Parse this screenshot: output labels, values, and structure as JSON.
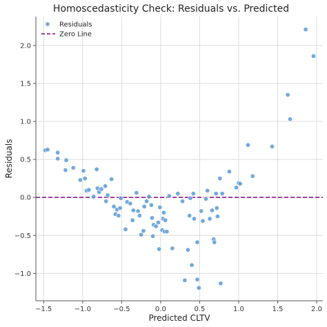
{
  "chart_data": {
    "type": "scatter",
    "title": "Homoscedasticity Check: Residuals vs. Predicted",
    "xlabel": "Predicted CLTV",
    "ylabel": "Residuals",
    "xlim": [
      -1.6,
      2.08
    ],
    "ylim": [
      -1.36,
      2.38
    ],
    "xticks": [
      -1.5,
      -1.0,
      -0.5,
      0.0,
      0.5,
      1.0,
      1.5,
      2.0
    ],
    "xtick_labels": [
      "−1.5",
      "−1.0",
      "−0.5",
      "0.0",
      "0.5",
      "1.0",
      "1.5",
      "2.0"
    ],
    "yticks": [
      -1.0,
      -0.5,
      0.0,
      0.5,
      1.0,
      1.5,
      2.0
    ],
    "ytick_labels": [
      "−1.0",
      "−0.5",
      "0.0",
      "0.5",
      "1.0",
      "1.5",
      "2.0"
    ],
    "grid": true,
    "legend_position": "top-left",
    "reference_line": {
      "y": 0.0,
      "name": "Zero Line",
      "color": "#8b008b",
      "style": "dashed"
    },
    "series": [
      {
        "name": "Residuals",
        "color": "#5b9bd5",
        "points": [
          [
            -1.48,
            0.62
          ],
          [
            -1.45,
            0.63
          ],
          [
            -1.32,
            0.59
          ],
          [
            -1.32,
            0.51
          ],
          [
            -1.21,
            0.49
          ],
          [
            -1.22,
            0.36
          ],
          [
            -1.12,
            0.39
          ],
          [
            -1.03,
            0.23
          ],
          [
            -0.99,
            0.35
          ],
          [
            -0.97,
            0.25
          ],
          [
            -0.95,
            0.09
          ],
          [
            -0.92,
            0.1
          ],
          [
            -0.86,
            0.01
          ],
          [
            -0.82,
            0.37
          ],
          [
            -0.81,
            0.12
          ],
          [
            -0.79,
            0.07
          ],
          [
            -0.76,
            0.11
          ],
          [
            -0.71,
            0.15
          ],
          [
            -0.7,
            -0.05
          ],
          [
            -0.68,
            0.03
          ],
          [
            -0.63,
            0.24
          ],
          [
            -0.6,
            -0.12
          ],
          [
            -0.58,
            -0.22
          ],
          [
            -0.56,
            -0.16
          ],
          [
            -0.54,
            -0.24
          ],
          [
            -0.52,
            -0.14
          ],
          [
            -0.51,
            -0.01
          ],
          [
            -0.45,
            -0.42
          ],
          [
            -0.43,
            -0.06
          ],
          [
            -0.39,
            -0.08
          ],
          [
            -0.36,
            -0.3
          ],
          [
            -0.35,
            -0.17
          ],
          [
            -0.31,
            0.06
          ],
          [
            -0.29,
            -0.18
          ],
          [
            -0.27,
            -0.24
          ],
          [
            -0.25,
            -0.49
          ],
          [
            -0.22,
            -0.44
          ],
          [
            -0.21,
            -0.12
          ],
          [
            -0.18,
            -0.05
          ],
          [
            -0.15,
            0.01
          ],
          [
            -0.12,
            -0.1
          ],
          [
            -0.11,
            -0.27
          ],
          [
            -0.1,
            -0.51
          ],
          [
            -0.09,
            -0.36
          ],
          [
            -0.06,
            -0.38
          ],
          [
            -0.03,
            -0.33
          ],
          [
            -0.02,
            -0.68
          ],
          [
            -0.01,
            -0.13
          ],
          [
            0.02,
            -0.43
          ],
          [
            0.03,
            -0.28
          ],
          [
            0.04,
            -0.2
          ],
          [
            0.05,
            -0.45
          ],
          [
            0.06,
            -0.3
          ],
          [
            0.08,
            -0.45
          ],
          [
            0.11,
            0.02
          ],
          [
            0.15,
            -0.67
          ],
          [
            0.22,
            0.05
          ],
          [
            0.28,
            -0.05
          ],
          [
            0.31,
            -1.09
          ],
          [
            0.35,
            -0.69
          ],
          [
            0.37,
            -0.24
          ],
          [
            0.38,
            -0.01
          ],
          [
            0.4,
            -0.89
          ],
          [
            0.42,
            0.05
          ],
          [
            0.43,
            -0.28
          ],
          [
            0.47,
            -0.59
          ],
          [
            0.47,
            -1.08
          ],
          [
            0.49,
            -1.19
          ],
          [
            0.52,
            -0.18
          ],
          [
            0.54,
            -0.31
          ],
          [
            0.58,
            -0.02
          ],
          [
            0.6,
            0.09
          ],
          [
            0.63,
            -0.28
          ],
          [
            0.66,
            -0.17
          ],
          [
            0.68,
            -0.55
          ],
          [
            0.69,
            -0.59
          ],
          [
            0.71,
            0.05
          ],
          [
            0.72,
            -0.14
          ],
          [
            0.73,
            -0.25
          ],
          [
            0.76,
            0.25
          ],
          [
            0.77,
            -1.13
          ],
          [
            0.79,
            0.05
          ],
          [
            0.88,
            0.34
          ],
          [
            0.97,
            0.13
          ],
          [
            1.0,
            0.19
          ],
          [
            1.02,
            0.18
          ],
          [
            1.12,
            0.69
          ],
          [
            1.18,
            0.28
          ],
          [
            1.43,
            0.67
          ],
          [
            1.63,
            1.35
          ],
          [
            1.66,
            1.03
          ],
          [
            1.86,
            2.21
          ],
          [
            1.96,
            1.86
          ]
        ]
      }
    ]
  }
}
